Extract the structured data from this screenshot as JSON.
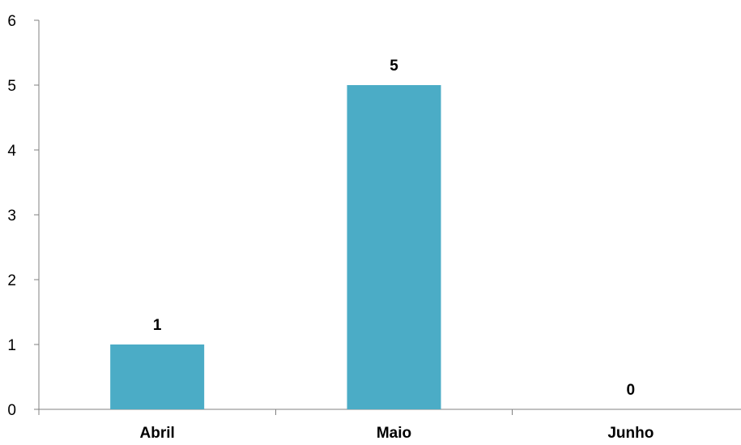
{
  "chart_data": {
    "type": "bar",
    "categories": [
      "Abril",
      "Maio",
      "Junho"
    ],
    "values": [
      1,
      5,
      0
    ],
    "data_labels": [
      "1",
      "5",
      "0"
    ],
    "title": "",
    "xlabel": "",
    "ylabel": "",
    "ylim": [
      0,
      6
    ],
    "yticks": [
      0,
      1,
      2,
      3,
      4,
      5,
      6
    ],
    "ytick_labels": [
      "0",
      "1",
      "2",
      "3",
      "4",
      "5",
      "6"
    ],
    "bar_color": "#4bacc6",
    "grid": false,
    "legend": "none"
  }
}
